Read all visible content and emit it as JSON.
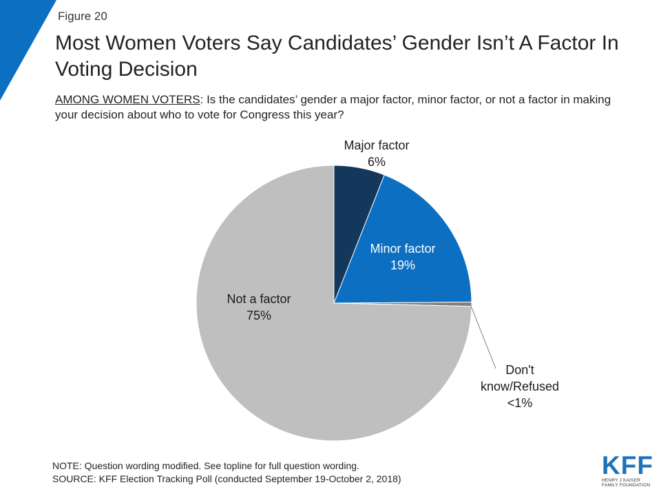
{
  "figure_label": "Figure 20",
  "title": "Most Women Voters Say Candidates’ Gender Isn’t A Factor In Voting Decision",
  "subtitle": {
    "prefix": "AMONG WOMEN VOTERS",
    "text": ": Is the candidates’ gender a major factor, minor factor, or not a factor in making your decision about who to vote for Congress this year?"
  },
  "chart_data": {
    "type": "pie",
    "title": "",
    "slices": [
      {
        "label": "Major factor",
        "value": 6,
        "display": "6%",
        "color": "#14375c"
      },
      {
        "label": "Minor factor",
        "value": 19,
        "display": "19%",
        "color": "#0d6fc1"
      },
      {
        "label": "Don't know/Refused",
        "value": 0.5,
        "display": "<1%",
        "color": "#7f7f7f"
      },
      {
        "label": "Not a factor",
        "value": 75,
        "display": "75%",
        "color": "#bfbfbf"
      }
    ]
  },
  "note": "NOTE: Question wording modified. See topline for full question wording.",
  "source": "SOURCE: KFF Election Tracking Poll (conducted September 19-October 2, 2018)",
  "logo": {
    "mark": "KFF",
    "line1": "HENRY J KAISER",
    "line2": "FAMILY FOUNDATION"
  },
  "colors": {
    "accent": "#0d6fc1"
  }
}
